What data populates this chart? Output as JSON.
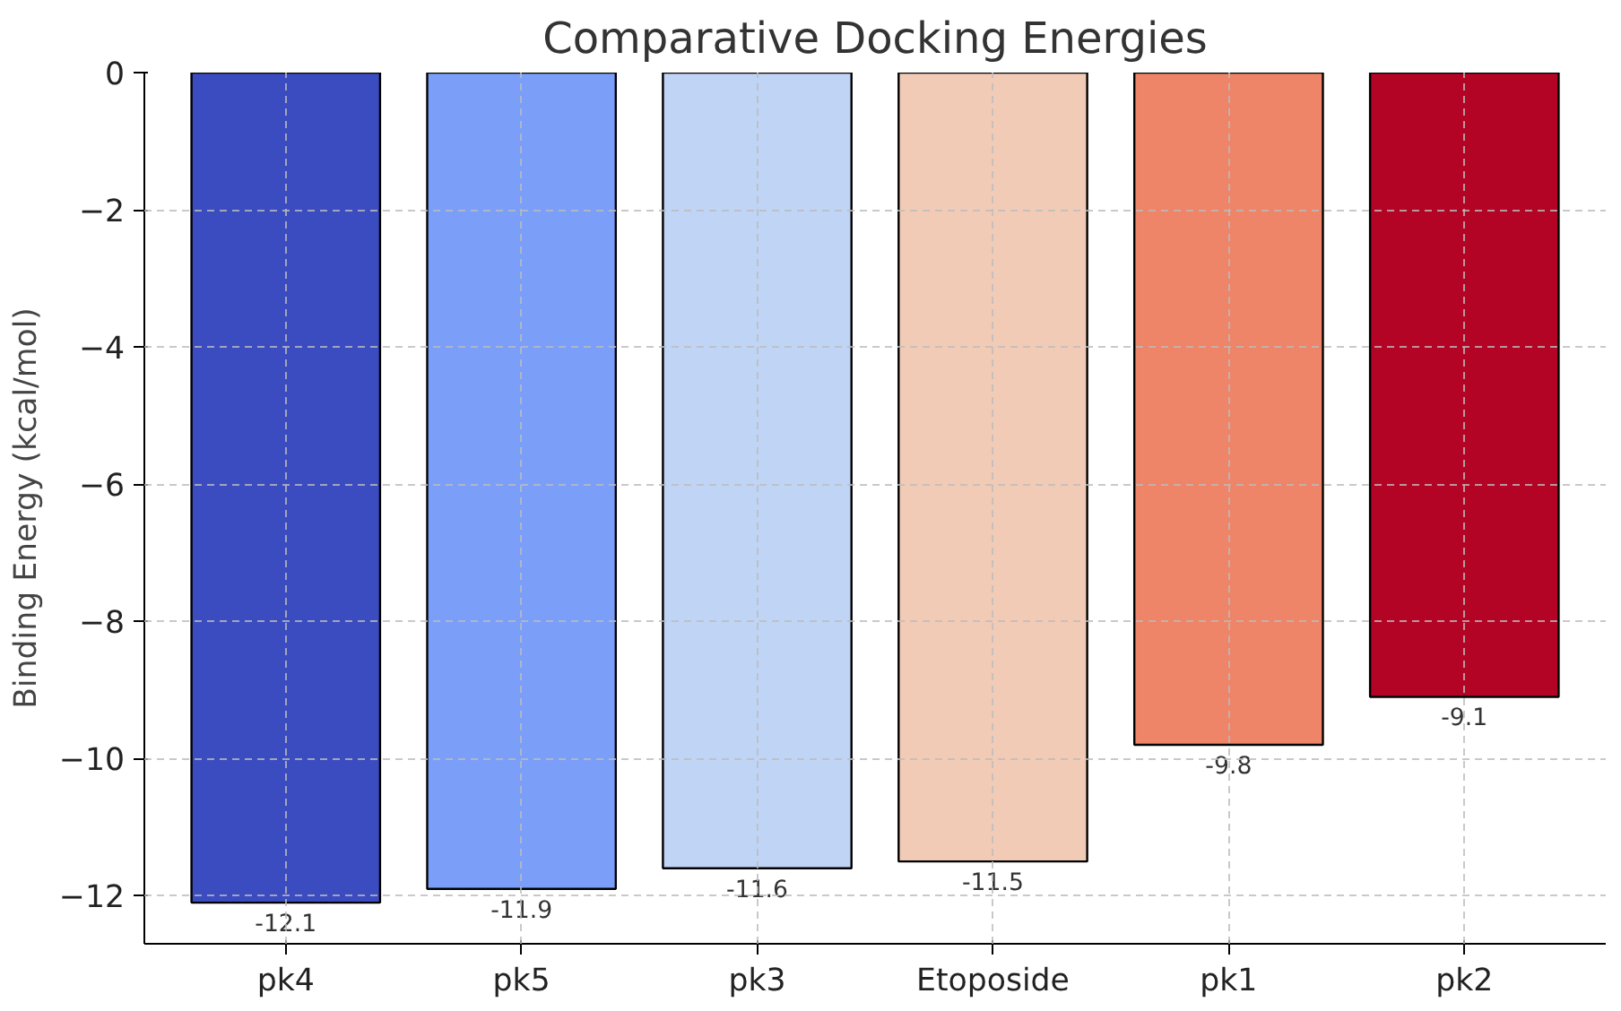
{
  "chart_data": {
    "type": "bar",
    "title": "Comparative Docking Energies",
    "ylabel": "Binding Energy (kcal/mol)",
    "categories": [
      "pk4",
      "pk5",
      "pk3",
      "Etoposide",
      "pk1",
      "pk2"
    ],
    "values": [
      -12.1,
      -11.9,
      -11.6,
      -11.5,
      -9.8,
      -9.1
    ],
    "colors": [
      "#3b4cc0",
      "#7b9ff9",
      "#c0d4f5",
      "#f2cbb7",
      "#ee8468",
      "#b40426"
    ],
    "ylim": [
      -12.7,
      0
    ],
    "yticks": [
      {
        "value": 0,
        "label": "0"
      },
      {
        "value": -2,
        "label": "−2"
      },
      {
        "value": -4,
        "label": "−4"
      },
      {
        "value": -6,
        "label": "−6"
      },
      {
        "value": -8,
        "label": "−8"
      },
      {
        "value": -10,
        "label": "−10"
      },
      {
        "value": -12,
        "label": "−12"
      }
    ],
    "grid": true,
    "data_labels": true
  }
}
